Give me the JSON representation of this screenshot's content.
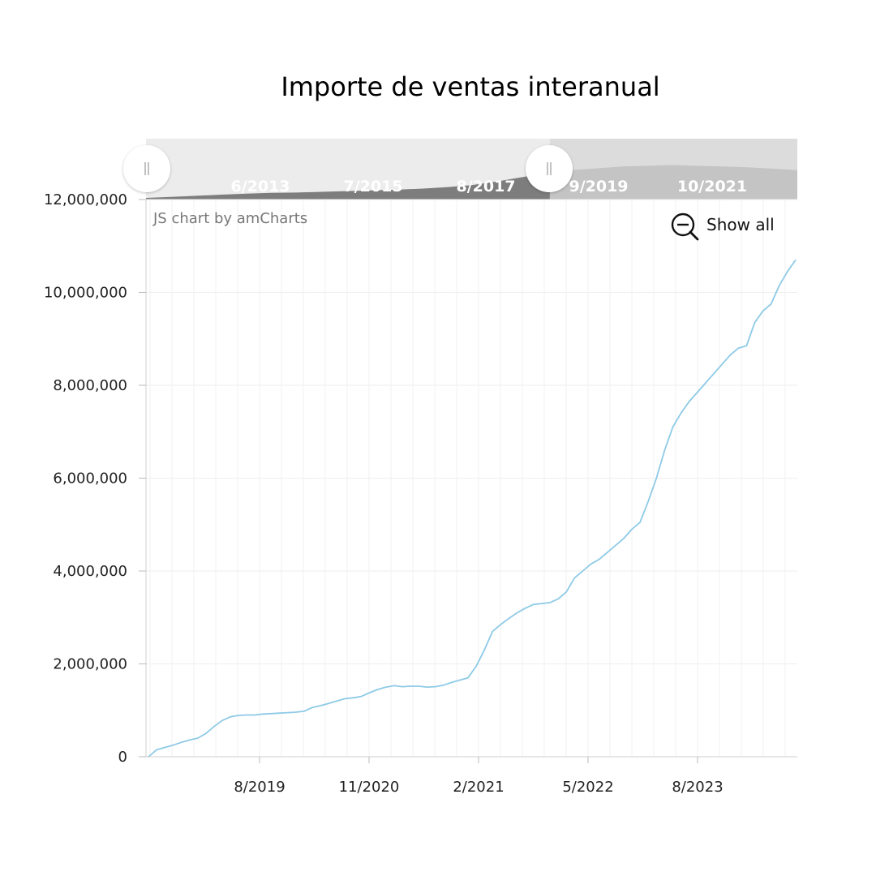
{
  "chart_data": {
    "type": "line",
    "title": "Importe de ventas interanual",
    "credit": "JS chart by amCharts",
    "show_all_label": "Show all",
    "xlabel": "",
    "ylabel": "",
    "ylim": [
      0,
      12000000
    ],
    "y_ticks": [
      0,
      2000000,
      4000000,
      6000000,
      8000000,
      10000000,
      12000000
    ],
    "y_tick_labels": [
      "0",
      "2,000,000",
      "4,000,000",
      "6,000,000",
      "8,000,000",
      "10,000,000",
      "12,000,000"
    ],
    "x_tick_labels": [
      "8/2019",
      "11/2020",
      "2/2021",
      "5/2022",
      "8/2023"
    ],
    "grid": true,
    "line_color": "#8ecae6",
    "series": [
      {
        "values": [
          0,
          150000,
          200000,
          250000,
          310000,
          360000,
          400000,
          500000,
          650000,
          780000,
          860000,
          890000,
          900000,
          900000,
          920000,
          930000,
          940000,
          950000,
          960000,
          980000,
          1060000,
          1100000,
          1150000,
          1200000,
          1250000,
          1270000,
          1300000,
          1380000,
          1450000,
          1500000,
          1530000,
          1510000,
          1520000,
          1520000,
          1500000,
          1510000,
          1540000,
          1600000,
          1650000,
          1700000,
          1950000,
          2300000,
          2700000,
          2850000,
          2980000,
          3100000,
          3200000,
          3280000,
          3300000,
          3320000,
          3400000,
          3550000,
          3850000,
          4000000,
          4150000,
          4250000,
          4400000,
          4550000,
          4700000,
          4900000,
          5050000,
          5500000,
          6000000,
          6600000,
          7100000,
          7400000,
          7650000,
          7850000,
          8050000,
          8250000,
          8450000,
          8650000,
          8800000,
          8850000,
          9350000,
          9600000,
          9750000,
          10150000,
          10450000,
          10700000
        ]
      }
    ],
    "scrollbar_labels": [
      "6/2013",
      "7/2015",
      "8/2017",
      "9/2019",
      "10/2021"
    ],
    "scrollbar_series_values": [
      0,
      0.03,
      0.06,
      0.09,
      0.12,
      0.14,
      0.15,
      0.17,
      0.19,
      0.21,
      0.23,
      0.26,
      0.3,
      0.36,
      0.46,
      0.58,
      0.7,
      0.78,
      0.83,
      0.88,
      0.9,
      0.92,
      0.9,
      0.88,
      0.86,
      0.82,
      0.78
    ],
    "scrollbar_selection": [
      0,
      0.62
    ]
  }
}
